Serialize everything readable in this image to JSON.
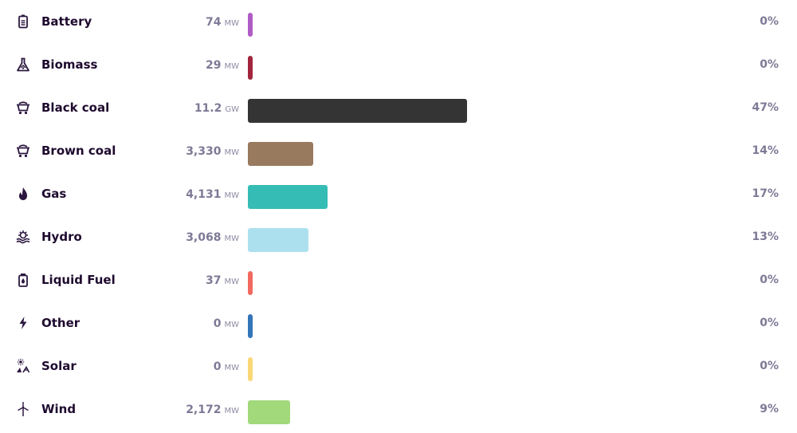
{
  "chart_data": {
    "type": "bar",
    "orientation": "horizontal",
    "categories": [
      "Battery",
      "Biomass",
      "Black coal",
      "Brown coal",
      "Gas",
      "Hydro",
      "Liquid Fuel",
      "Other",
      "Solar",
      "Wind"
    ],
    "rows": [
      {
        "label": "Battery",
        "icon": "battery-icon",
        "value_text": "74",
        "unit": "MW",
        "percent_text": "0%",
        "share": 0.3,
        "color": "#b05cc6"
      },
      {
        "label": "Biomass",
        "icon": "flask-icon",
        "value_text": "29",
        "unit": "MW",
        "percent_text": "0%",
        "share": 0.1,
        "color": "#a3253d"
      },
      {
        "label": "Black coal",
        "icon": "mine-cart-icon",
        "value_text": "11.2",
        "unit": "GW",
        "percent_text": "47%",
        "share": 47,
        "color": "#343434"
      },
      {
        "label": "Brown coal",
        "icon": "mine-cart-icon",
        "value_text": "3,330",
        "unit": "MW",
        "percent_text": "14%",
        "share": 14,
        "color": "#987a5f"
      },
      {
        "label": "Gas",
        "icon": "flame-icon",
        "value_text": "4,131",
        "unit": "MW",
        "percent_text": "17%",
        "share": 17,
        "color": "#35bcb5"
      },
      {
        "label": "Hydro",
        "icon": "water-wheel-icon",
        "value_text": "3,068",
        "unit": "MW",
        "percent_text": "13%",
        "share": 13,
        "color": "#ade0ee"
      },
      {
        "label": "Liquid Fuel",
        "icon": "fuel-canister-icon",
        "value_text": "37",
        "unit": "MW",
        "percent_text": "0%",
        "share": 0.2,
        "color": "#f26a5f"
      },
      {
        "label": "Other",
        "icon": "lightning-icon",
        "value_text": "0",
        "unit": "MW",
        "percent_text": "0%",
        "share": 0,
        "color": "#3375b9"
      },
      {
        "label": "Solar",
        "icon": "solar-icon",
        "value_text": "0",
        "unit": "MW",
        "percent_text": "0%",
        "share": 0,
        "color": "#fad877"
      },
      {
        "label": "Wind",
        "icon": "wind-turbine-icon",
        "value_text": "2,172",
        "unit": "MW",
        "percent_text": "9%",
        "share": 9,
        "color": "#a2d97b"
      }
    ],
    "grid": false,
    "legend": "none",
    "xlim": [
      0,
      100
    ]
  }
}
